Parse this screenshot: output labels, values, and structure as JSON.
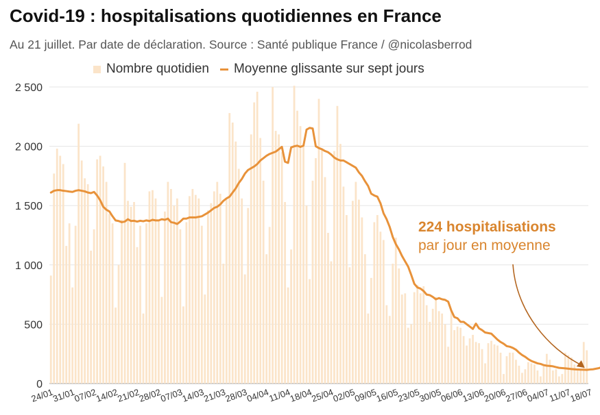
{
  "title": "Covid-19 : hospitalisations quotidiennes en France",
  "subtitle": "Au 21 juillet. Par date de déclaration. Source : Santé publique France / @nicolasberrod",
  "legend": {
    "bars_label": "Nombre quotidien",
    "line_label": "Moyenne glissante sur sept jours"
  },
  "annotation": {
    "value_line": "224 hospitalisations",
    "text_line": "par jour en moyenne"
  },
  "colors": {
    "bars": "#fbe4c9",
    "line": "#e8923a",
    "annotation": "#d9852e",
    "grid": "#e5e5e5"
  },
  "chart_data": {
    "type": "bar",
    "title": "Covid-19 : hospitalisations quotidiennes en France",
    "ylim": [
      0,
      2500
    ],
    "yticks": [
      0,
      500,
      1000,
      1500,
      2000,
      2500
    ],
    "ytick_labels": [
      "0",
      "500",
      "1 000",
      "1 500",
      "2 000",
      "2 500"
    ],
    "grid": true,
    "legend_position": "top",
    "x_start": "24/01",
    "xtick_labels": [
      "24/01",
      "31/01",
      "07/02",
      "14/02",
      "21/02",
      "28/02",
      "07/03",
      "14/03",
      "21/03",
      "28/03",
      "04/04",
      "11/04",
      "18/04",
      "25/04",
      "02/05",
      "09/05",
      "16/05",
      "23/05",
      "30/05",
      "06/06",
      "13/06",
      "20/06",
      "27/06",
      "04/07",
      "11/07",
      "18/07"
    ],
    "series": [
      {
        "name": "Nombre quotidien",
        "type": "bar",
        "values": [
          910,
          1770,
          1980,
          1920,
          1850,
          1160,
          1350,
          810,
          1330,
          2190,
          1880,
          1730,
          1680,
          1120,
          1300,
          1890,
          1920,
          1830,
          1700,
          1430,
          1350,
          640,
          1000,
          1380,
          1860,
          1540,
          1490,
          1530,
          1150,
          1330,
          590,
          1350,
          1620,
          1630,
          1560,
          1370,
          730,
          1450,
          1700,
          1640,
          1500,
          1560,
          1300,
          650,
          1360,
          1580,
          1640,
          1590,
          1560,
          1330,
          750,
          1460,
          1520,
          1620,
          1700,
          1600,
          1010,
          1550,
          2280,
          2200,
          2040,
          1810,
          1560,
          920,
          1480,
          2100,
          2370,
          2460,
          2070,
          1710,
          1090,
          1320,
          2500,
          2130,
          2100,
          1950,
          1530,
          810,
          1130,
          2510,
          2300,
          2170,
          2020,
          1500,
          880,
          1710,
          1900,
          2400,
          1980,
          1740,
          1270,
          1030,
          1960,
          2340,
          2020,
          1660,
          1420,
          980,
          1540,
          1700,
          1550,
          1400,
          1090,
          590,
          890,
          1360,
          1420,
          1280,
          1210,
          660,
          570,
          1010,
          1230,
          970,
          750,
          760,
          470,
          500,
          770,
          830,
          760,
          820,
          660,
          520,
          630,
          730,
          610,
          590,
          500,
          310,
          620,
          450,
          480,
          470,
          400,
          320,
          380,
          410,
          350,
          340,
          290,
          170,
          340,
          360,
          330,
          320,
          260,
          80,
          230,
          260,
          260,
          200,
          150,
          90,
          120,
          180,
          170,
          160,
          110,
          60,
          150,
          250,
          200,
          110,
          120,
          60,
          80,
          260,
          240,
          220,
          160,
          120,
          120,
          350,
          280
        ]
      },
      {
        "name": "Moyenne glissante sur sept jours",
        "type": "line",
        "values": [
          1610,
          1625,
          1630,
          1630,
          1625,
          1622,
          1618,
          1615,
          1625,
          1630,
          1625,
          1620,
          1610,
          1605,
          1615,
          1585,
          1545,
          1490,
          1465,
          1450,
          1410,
          1375,
          1370,
          1360,
          1365,
          1385,
          1370,
          1372,
          1365,
          1372,
          1368,
          1375,
          1370,
          1380,
          1375,
          1375,
          1385,
          1380,
          1390,
          1360,
          1355,
          1345,
          1365,
          1390,
          1390,
          1400,
          1400,
          1400,
          1405,
          1410,
          1425,
          1440,
          1460,
          1480,
          1490,
          1510,
          1540,
          1560,
          1575,
          1610,
          1645,
          1690,
          1725,
          1770,
          1800,
          1815,
          1830,
          1850,
          1880,
          1900,
          1920,
          1935,
          1945,
          1955,
          1975,
          1995,
          1870,
          1860,
          1990,
          2000,
          2005,
          1995,
          2005,
          2140,
          2155,
          2150,
          2000,
          1985,
          1975,
          1960,
          1950,
          1930,
          1905,
          1890,
          1880,
          1880,
          1865,
          1850,
          1835,
          1820,
          1780,
          1750,
          1705,
          1665,
          1600,
          1585,
          1575,
          1520,
          1435,
          1385,
          1320,
          1235,
          1175,
          1130,
          1075,
          1030,
          985,
          915,
          840,
          810,
          800,
          780,
          750,
          745,
          730,
          710,
          720,
          710,
          705,
          690,
          615,
          560,
          550,
          520,
          520,
          500,
          480,
          460,
          505,
          465,
          450,
          430,
          425,
          420,
          395,
          370,
          350,
          335,
          315,
          310,
          300,
          285,
          260,
          240,
          225,
          205,
          190,
          180,
          170,
          165,
          155,
          150,
          148,
          145,
          138,
          132,
          130,
          128,
          125,
          122,
          120,
          118,
          117,
          116,
          115,
          118,
          120,
          125,
          130,
          140,
          155,
          158,
          168,
          175,
          180,
          190,
          200,
          224
        ]
      }
    ]
  }
}
